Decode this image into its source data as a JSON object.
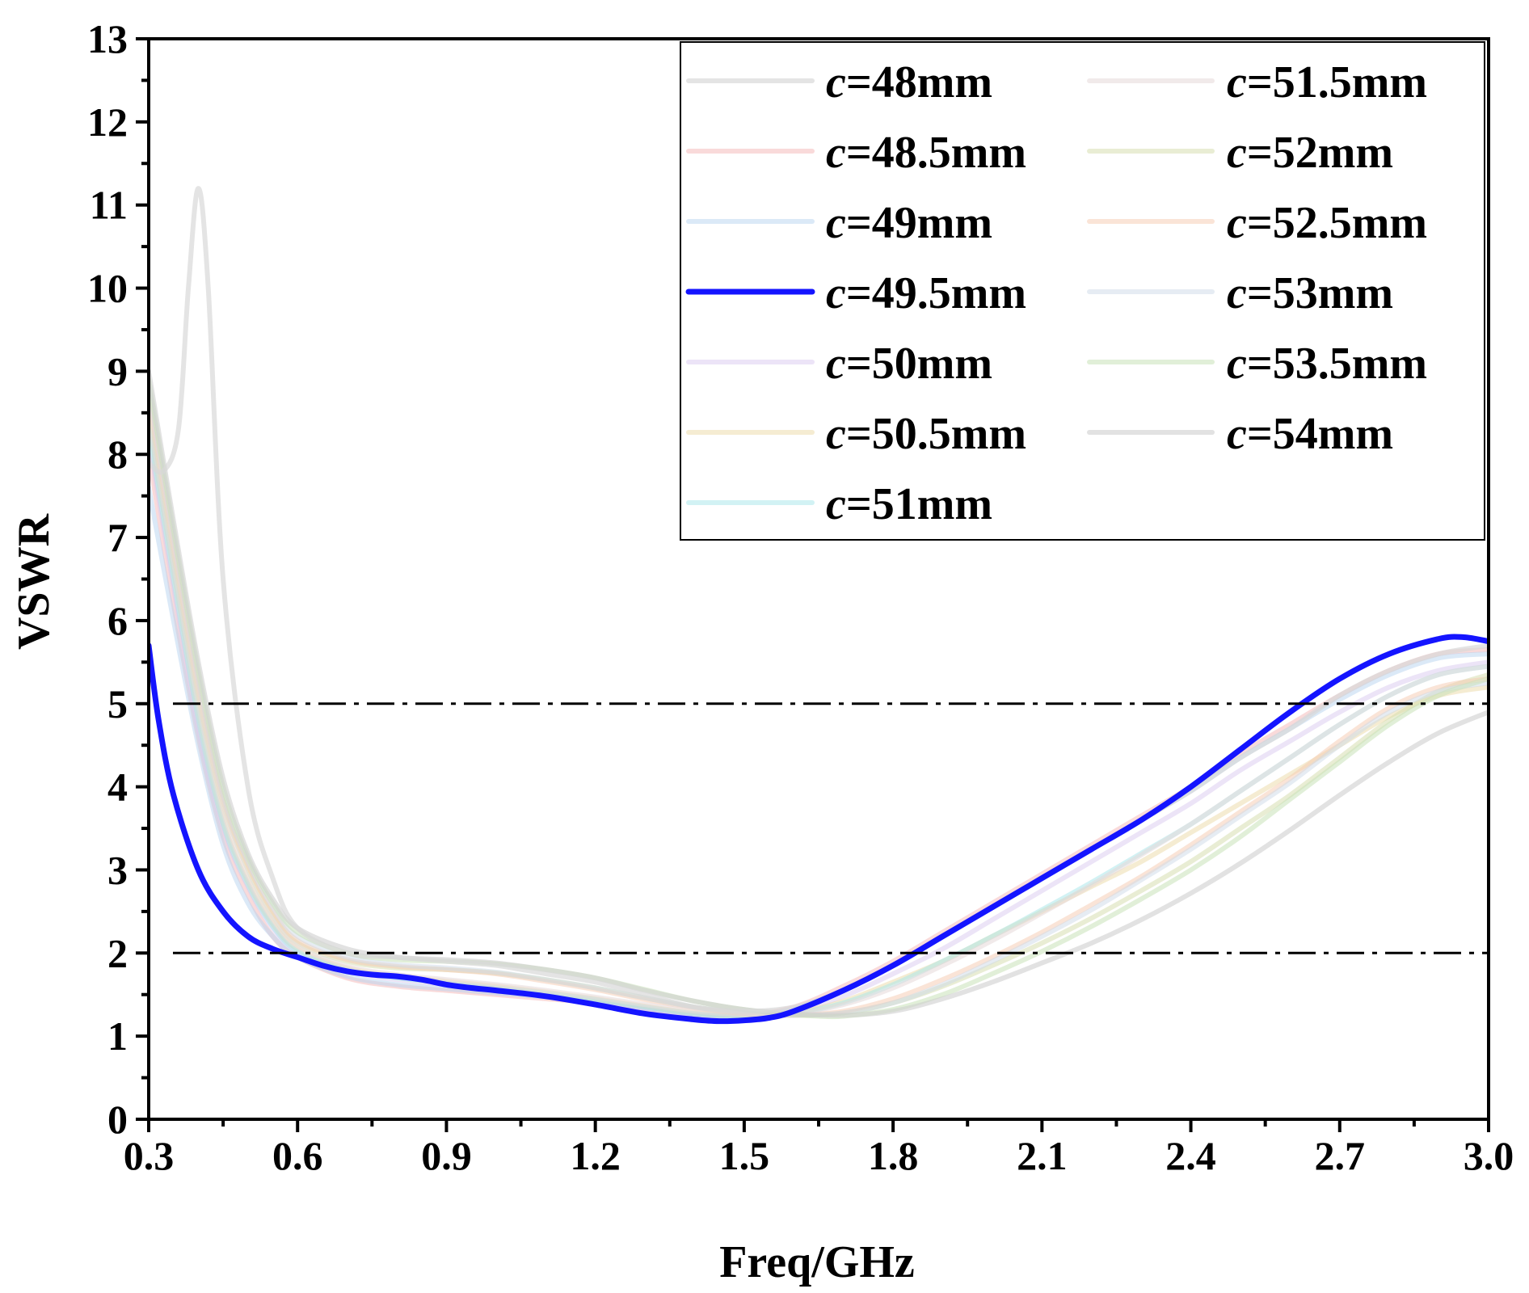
{
  "chart_data": {
    "type": "line",
    "xlabel": "Freq/GHz",
    "ylabel": "VSWR",
    "xlim": [
      0.3,
      3.0
    ],
    "ylim": [
      0,
      13
    ],
    "xticks": [
      "0.3",
      "0.6",
      "0.9",
      "1.2",
      "1.5",
      "1.8",
      "2.1",
      "2.4",
      "2.7",
      "3.0"
    ],
    "yticks": [
      "0",
      "1",
      "2",
      "3",
      "4",
      "5",
      "6",
      "7",
      "8",
      "9",
      "10",
      "11",
      "12",
      "13"
    ],
    "reference_lines": [
      {
        "axis": "y",
        "value": 5,
        "style": "dash-dot",
        "color": "#000000"
      },
      {
        "axis": "y",
        "value": 2,
        "style": "dash-dot",
        "color": "#000000"
      }
    ],
    "legend": {
      "placement": "top-right",
      "columns": 2,
      "prefix": "c",
      "sep": "="
    },
    "series": [
      {
        "name": "48mm",
        "label_value": "48mm",
        "color": "#d9d9d9",
        "opacity": 0.7,
        "x": [
          0.3,
          0.33,
          0.36,
          0.38,
          0.4,
          0.42,
          0.45,
          0.5,
          0.55,
          0.6,
          0.7,
          0.8,
          0.9,
          1.0,
          1.1,
          1.2,
          1.3,
          1.4,
          1.5,
          1.6,
          1.7,
          1.8,
          1.9,
          2.0,
          2.1,
          2.2,
          2.3,
          2.4,
          2.5,
          2.6,
          2.7,
          2.8,
          2.9,
          3.0
        ],
        "y": [
          7.9,
          7.8,
          8.3,
          10.0,
          11.2,
          10.0,
          6.5,
          4.0,
          2.9,
          2.3,
          2.0,
          1.95,
          1.9,
          1.85,
          1.75,
          1.65,
          1.5,
          1.35,
          1.3,
          1.35,
          1.55,
          1.85,
          2.2,
          2.55,
          2.9,
          3.25,
          3.6,
          3.95,
          4.35,
          4.7,
          5.1,
          5.4,
          5.6,
          5.7
        ]
      },
      {
        "name": "48.5mm",
        "label_value": "48.5mm",
        "color": "#f4b6b6",
        "opacity": 0.5,
        "x": [
          0.3,
          0.35,
          0.4,
          0.45,
          0.5,
          0.55,
          0.6,
          0.7,
          0.8,
          0.9,
          1.0,
          1.1,
          1.2,
          1.3,
          1.4,
          1.5,
          1.6,
          1.7,
          1.8,
          1.9,
          2.0,
          2.1,
          2.2,
          2.3,
          2.4,
          2.5,
          2.6,
          2.7,
          2.8,
          2.9,
          3.0
        ],
        "y": [
          8.0,
          6.2,
          4.6,
          3.4,
          2.7,
          2.2,
          1.95,
          1.7,
          1.6,
          1.55,
          1.5,
          1.45,
          1.4,
          1.32,
          1.25,
          1.25,
          1.35,
          1.6,
          1.9,
          2.25,
          2.6,
          2.95,
          3.3,
          3.65,
          4.0,
          4.4,
          4.75,
          5.1,
          5.4,
          5.6,
          5.65
        ]
      },
      {
        "name": "49mm",
        "label_value": "49mm",
        "color": "#b7d3ef",
        "opacity": 0.5,
        "x": [
          0.3,
          0.35,
          0.4,
          0.45,
          0.5,
          0.55,
          0.6,
          0.7,
          0.8,
          0.9,
          1.0,
          1.1,
          1.2,
          1.3,
          1.4,
          1.5,
          1.6,
          1.7,
          1.8,
          1.9,
          2.0,
          2.1,
          2.2,
          2.3,
          2.4,
          2.5,
          2.6,
          2.7,
          2.8,
          2.9,
          3.0
        ],
        "y": [
          7.6,
          6.0,
          4.5,
          3.3,
          2.6,
          2.2,
          1.95,
          1.72,
          1.62,
          1.57,
          1.52,
          1.47,
          1.4,
          1.32,
          1.25,
          1.24,
          1.33,
          1.55,
          1.85,
          2.2,
          2.55,
          2.9,
          3.25,
          3.6,
          3.95,
          4.35,
          4.7,
          5.05,
          5.35,
          5.55,
          5.6
        ]
      },
      {
        "name": "49.5mm",
        "label_value": "49.5mm",
        "color": "#1414ff",
        "opacity": 1.0,
        "width": 7,
        "x": [
          0.3,
          0.32,
          0.35,
          0.4,
          0.45,
          0.5,
          0.55,
          0.6,
          0.65,
          0.7,
          0.75,
          0.8,
          0.85,
          0.9,
          0.95,
          1.0,
          1.1,
          1.2,
          1.3,
          1.4,
          1.45,
          1.5,
          1.55,
          1.6,
          1.7,
          1.8,
          1.9,
          2.0,
          2.1,
          2.2,
          2.3,
          2.4,
          2.5,
          2.6,
          2.7,
          2.8,
          2.9,
          2.95,
          3.0
        ],
        "y": [
          5.7,
          4.8,
          3.9,
          3.0,
          2.5,
          2.2,
          2.05,
          1.95,
          1.85,
          1.78,
          1.74,
          1.72,
          1.68,
          1.62,
          1.58,
          1.55,
          1.48,
          1.38,
          1.27,
          1.2,
          1.18,
          1.19,
          1.22,
          1.3,
          1.55,
          1.85,
          2.2,
          2.55,
          2.9,
          3.25,
          3.6,
          4.0,
          4.45,
          4.9,
          5.3,
          5.6,
          5.78,
          5.8,
          5.75
        ]
      },
      {
        "name": "50mm",
        "label_value": "50mm",
        "color": "#d9c9ef",
        "opacity": 0.5,
        "x": [
          0.3,
          0.35,
          0.4,
          0.45,
          0.5,
          0.55,
          0.6,
          0.7,
          0.8,
          0.9,
          1.0,
          1.1,
          1.2,
          1.3,
          1.4,
          1.5,
          1.6,
          1.7,
          1.8,
          1.9,
          2.0,
          2.1,
          2.2,
          2.3,
          2.4,
          2.5,
          2.6,
          2.7,
          2.8,
          2.9,
          3.0
        ],
        "y": [
          8.2,
          6.4,
          4.7,
          3.5,
          2.8,
          2.3,
          2.0,
          1.78,
          1.68,
          1.62,
          1.57,
          1.5,
          1.42,
          1.33,
          1.26,
          1.25,
          1.3,
          1.48,
          1.75,
          2.05,
          2.4,
          2.75,
          3.1,
          3.45,
          3.8,
          4.2,
          4.55,
          4.9,
          5.2,
          5.4,
          5.5
        ]
      },
      {
        "name": "50.5mm",
        "label_value": "50.5mm",
        "color": "#ecd9a6",
        "opacity": 0.5,
        "x": [
          0.3,
          0.35,
          0.4,
          0.45,
          0.5,
          0.55,
          0.6,
          0.7,
          0.8,
          0.9,
          1.0,
          1.1,
          1.2,
          1.3,
          1.4,
          1.5,
          1.6,
          1.7,
          1.8,
          1.9,
          2.0,
          2.1,
          2.2,
          2.3,
          2.4,
          2.5,
          2.6,
          2.7,
          2.8,
          2.9,
          3.0
        ],
        "y": [
          8.4,
          6.6,
          4.9,
          3.6,
          2.85,
          2.35,
          2.05,
          1.82,
          1.72,
          1.66,
          1.6,
          1.53,
          1.45,
          1.36,
          1.28,
          1.25,
          1.28,
          1.42,
          1.65,
          1.9,
          2.2,
          2.5,
          2.8,
          3.1,
          3.45,
          3.8,
          4.15,
          4.5,
          4.85,
          5.1,
          5.2
        ]
      },
      {
        "name": "51mm",
        "label_value": "51mm",
        "color": "#a6e6ea",
        "opacity": 0.5,
        "x": [
          0.3,
          0.35,
          0.4,
          0.45,
          0.5,
          0.55,
          0.6,
          0.7,
          0.8,
          0.9,
          1.0,
          1.1,
          1.2,
          1.3,
          1.4,
          1.5,
          1.6,
          1.7,
          1.8,
          1.9,
          2.0,
          2.1,
          2.2,
          2.3,
          2.4,
          2.5,
          2.6,
          2.7,
          2.8,
          2.9,
          3.0
        ],
        "y": [
          8.3,
          6.5,
          4.8,
          3.55,
          2.82,
          2.32,
          2.02,
          1.8,
          1.7,
          1.64,
          1.58,
          1.52,
          1.44,
          1.35,
          1.27,
          1.24,
          1.27,
          1.4,
          1.62,
          1.9,
          2.2,
          2.52,
          2.85,
          3.2,
          3.55,
          3.95,
          4.35,
          4.75,
          5.1,
          5.35,
          5.45
        ]
      },
      {
        "name": "51.5mm",
        "label_value": "51.5mm",
        "color": "#e6d9d9",
        "opacity": 0.55,
        "x": [
          0.3,
          0.35,
          0.4,
          0.45,
          0.5,
          0.55,
          0.6,
          0.7,
          0.8,
          0.9,
          1.0,
          1.1,
          1.2,
          1.3,
          1.4,
          1.5,
          1.6,
          1.7,
          1.8,
          1.9,
          2.0,
          2.1,
          2.2,
          2.3,
          2.4,
          2.5,
          2.6,
          2.7,
          2.8,
          2.9,
          3.0
        ],
        "y": [
          8.5,
          6.7,
          5.0,
          3.7,
          2.9,
          2.4,
          2.08,
          1.84,
          1.74,
          1.68,
          1.62,
          1.55,
          1.47,
          1.38,
          1.3,
          1.26,
          1.27,
          1.38,
          1.58,
          1.85,
          2.15,
          2.48,
          2.82,
          3.18,
          3.55,
          3.95,
          4.35,
          4.75,
          5.1,
          5.35,
          5.45
        ]
      },
      {
        "name": "52mm",
        "label_value": "52mm",
        "color": "#d4dcaa",
        "opacity": 0.5,
        "x": [
          0.3,
          0.35,
          0.4,
          0.45,
          0.5,
          0.55,
          0.6,
          0.7,
          0.8,
          0.9,
          1.0,
          1.1,
          1.2,
          1.3,
          1.4,
          1.5,
          1.6,
          1.7,
          1.8,
          1.9,
          2.0,
          2.1,
          2.2,
          2.3,
          2.4,
          2.5,
          2.6,
          2.7,
          2.8,
          2.9,
          3.0
        ],
        "y": [
          8.6,
          6.8,
          5.1,
          3.8,
          3.0,
          2.45,
          2.12,
          1.9,
          1.82,
          1.8,
          1.76,
          1.68,
          1.58,
          1.46,
          1.35,
          1.28,
          1.25,
          1.28,
          1.4,
          1.6,
          1.85,
          2.12,
          2.42,
          2.75,
          3.1,
          3.5,
          3.9,
          4.35,
          4.8,
          5.15,
          5.35
        ]
      },
      {
        "name": "52.5mm",
        "label_value": "52.5mm",
        "color": "#f6c9b0",
        "opacity": 0.5,
        "x": [
          0.3,
          0.35,
          0.4,
          0.45,
          0.5,
          0.55,
          0.6,
          0.7,
          0.8,
          0.9,
          1.0,
          1.1,
          1.2,
          1.3,
          1.4,
          1.5,
          1.6,
          1.7,
          1.8,
          1.9,
          2.0,
          2.1,
          2.2,
          2.3,
          2.4,
          2.5,
          2.6,
          2.7,
          2.8,
          2.9,
          3.0
        ],
        "y": [
          8.7,
          6.9,
          5.2,
          3.85,
          3.05,
          2.5,
          2.15,
          1.92,
          1.84,
          1.8,
          1.75,
          1.66,
          1.56,
          1.44,
          1.34,
          1.27,
          1.25,
          1.3,
          1.45,
          1.68,
          1.95,
          2.25,
          2.58,
          2.92,
          3.3,
          3.7,
          4.1,
          4.55,
          4.95,
          5.2,
          5.3
        ]
      },
      {
        "name": "53mm",
        "label_value": "53mm",
        "color": "#cdd9e8",
        "opacity": 0.5,
        "x": [
          0.3,
          0.35,
          0.4,
          0.45,
          0.5,
          0.55,
          0.6,
          0.7,
          0.8,
          0.9,
          1.0,
          1.1,
          1.2,
          1.3,
          1.4,
          1.5,
          1.6,
          1.7,
          1.8,
          1.9,
          2.0,
          2.1,
          2.2,
          2.3,
          2.4,
          2.5,
          2.6,
          2.7,
          2.8,
          2.9,
          3.0
        ],
        "y": [
          8.8,
          7.0,
          5.3,
          3.9,
          3.1,
          2.55,
          2.2,
          1.95,
          1.86,
          1.82,
          1.77,
          1.68,
          1.58,
          1.46,
          1.35,
          1.28,
          1.25,
          1.28,
          1.4,
          1.62,
          1.9,
          2.2,
          2.52,
          2.88,
          3.25,
          3.65,
          4.05,
          4.5,
          4.9,
          5.15,
          5.25
        ]
      },
      {
        "name": "53.5mm",
        "label_value": "53.5mm",
        "color": "#c9e2b8",
        "opacity": 0.55,
        "x": [
          0.3,
          0.35,
          0.4,
          0.45,
          0.5,
          0.55,
          0.6,
          0.7,
          0.8,
          0.9,
          1.0,
          1.1,
          1.2,
          1.3,
          1.4,
          1.5,
          1.6,
          1.65,
          1.7,
          1.8,
          1.9,
          2.0,
          2.1,
          2.2,
          2.3,
          2.4,
          2.5,
          2.6,
          2.7,
          2.8,
          2.9,
          3.0
        ],
        "y": [
          8.9,
          7.1,
          5.4,
          4.0,
          3.15,
          2.6,
          2.25,
          2.0,
          1.92,
          1.9,
          1.87,
          1.8,
          1.7,
          1.56,
          1.42,
          1.32,
          1.26,
          1.24,
          1.24,
          1.32,
          1.5,
          1.75,
          2.02,
          2.32,
          2.65,
          3.0,
          3.4,
          3.85,
          4.3,
          4.75,
          5.1,
          5.3
        ]
      },
      {
        "name": "54mm",
        "label_value": "54mm",
        "color": "#cfcfcf",
        "opacity": 0.6,
        "x": [
          0.3,
          0.35,
          0.4,
          0.45,
          0.5,
          0.55,
          0.6,
          0.7,
          0.8,
          0.9,
          1.0,
          1.1,
          1.2,
          1.3,
          1.4,
          1.5,
          1.6,
          1.7,
          1.8,
          1.9,
          2.0,
          2.1,
          2.2,
          2.3,
          2.4,
          2.5,
          2.6,
          2.7,
          2.8,
          2.9,
          3.0
        ],
        "y": [
          9.0,
          7.2,
          5.5,
          4.1,
          3.2,
          2.65,
          2.3,
          2.05,
          1.95,
          1.92,
          1.88,
          1.8,
          1.7,
          1.55,
          1.42,
          1.32,
          1.27,
          1.25,
          1.3,
          1.45,
          1.65,
          1.88,
          2.12,
          2.4,
          2.72,
          3.08,
          3.48,
          3.9,
          4.3,
          4.65,
          4.9
        ]
      }
    ]
  }
}
